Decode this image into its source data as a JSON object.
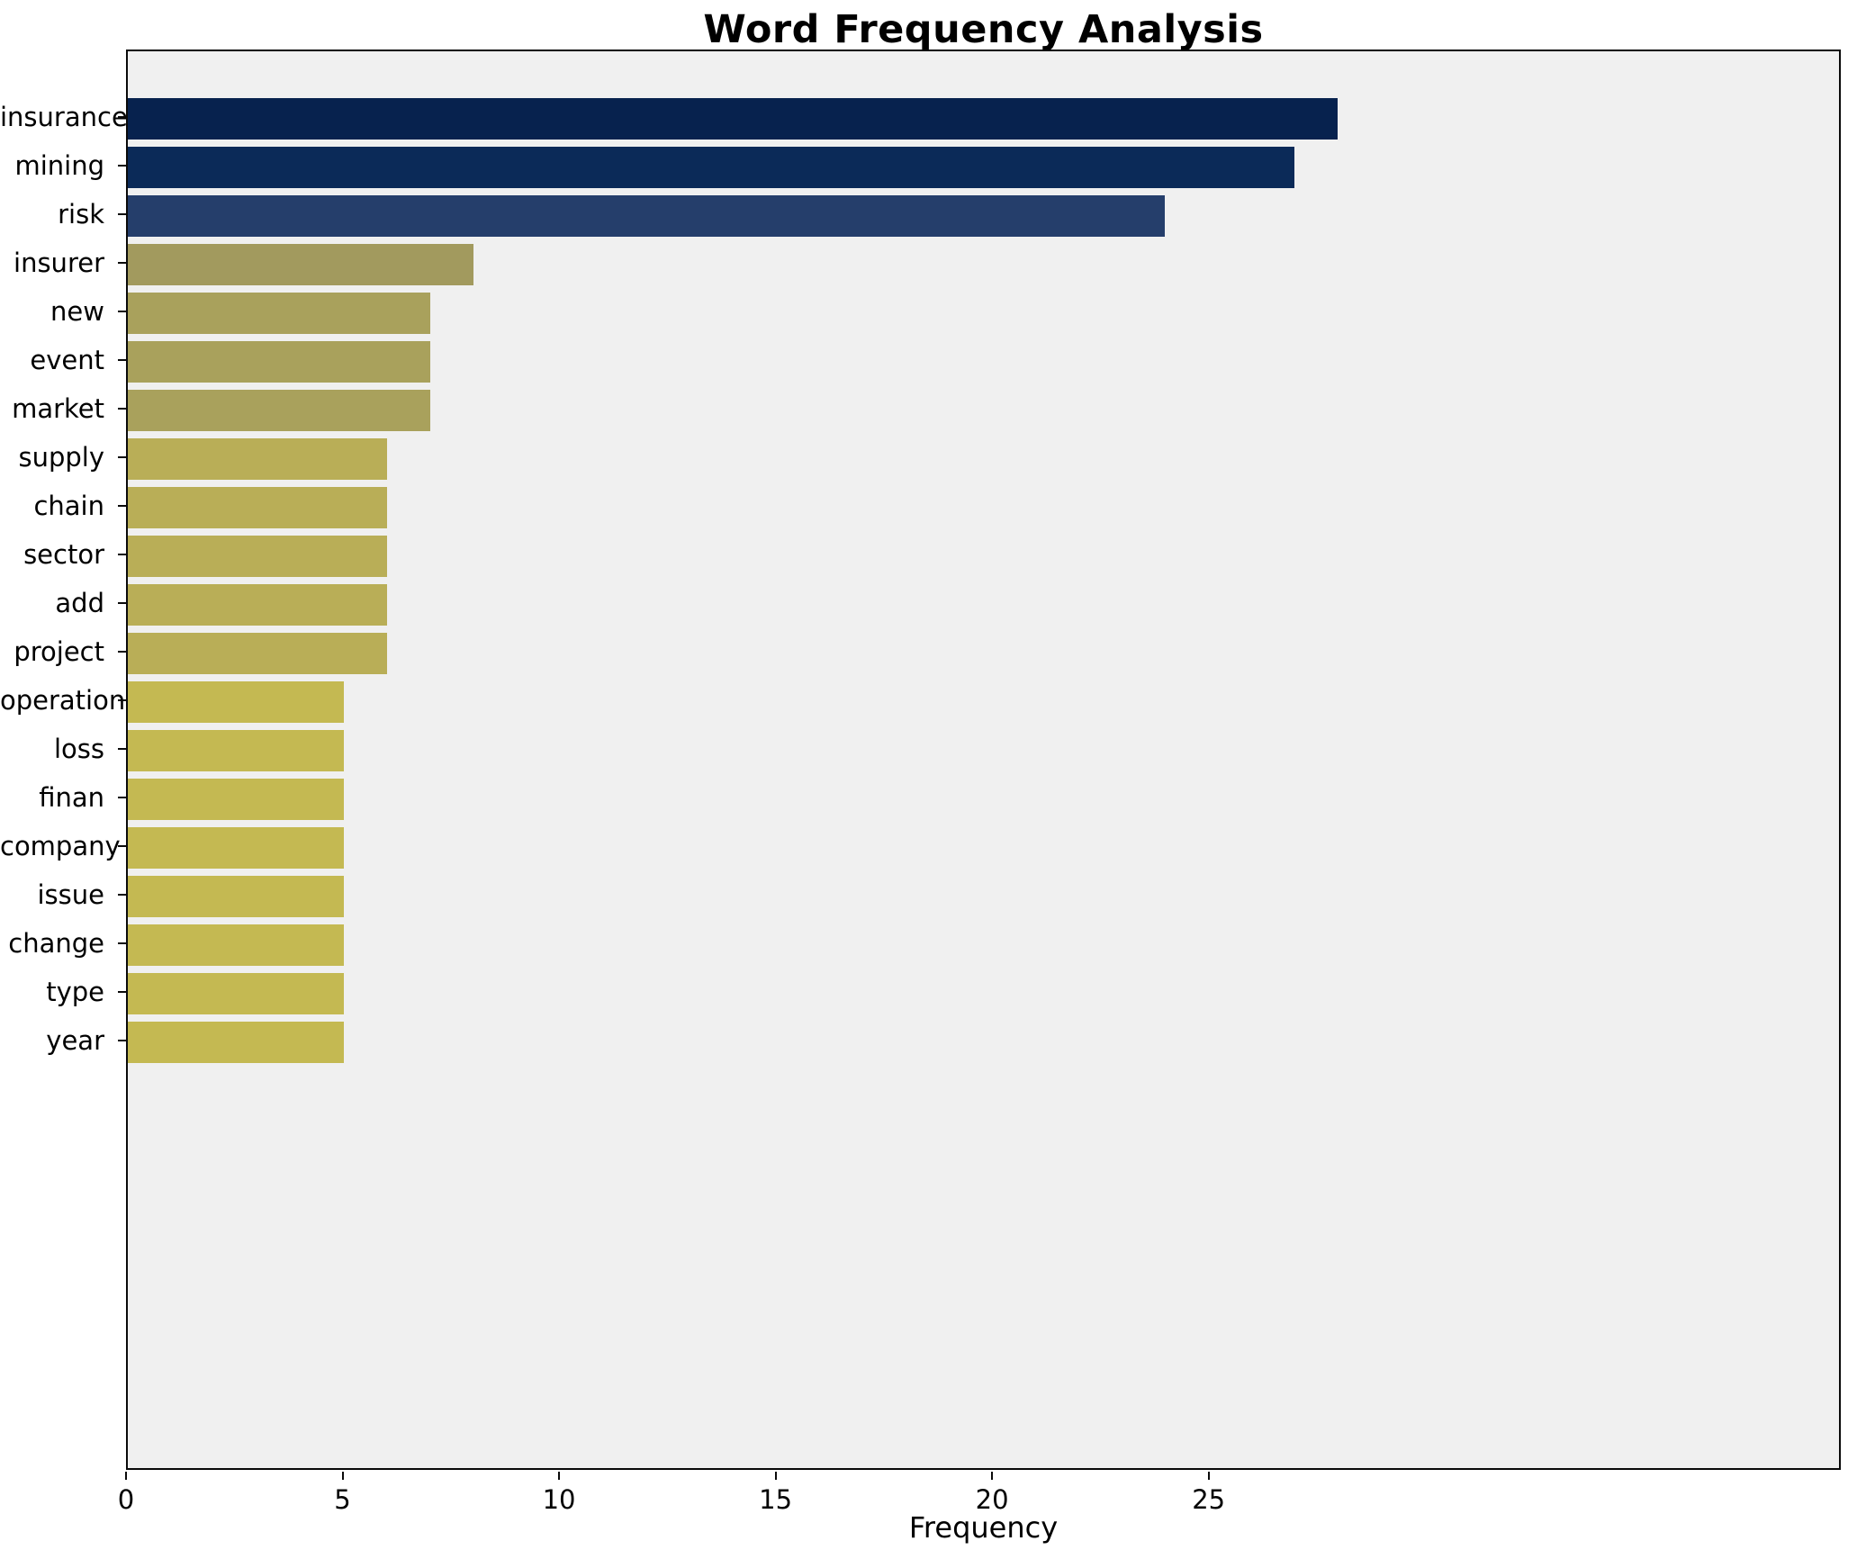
{
  "title": "Word Frequency Analysis",
  "chart_data": {
    "type": "bar",
    "orientation": "horizontal",
    "title": "Word Frequency Analysis",
    "xlabel": "Frequency",
    "ylabel": "",
    "grid": false,
    "legend": null,
    "plot_background": "#f0f0f0",
    "xlim": [
      0,
      39.6
    ],
    "xticks": [
      0,
      5,
      10,
      15,
      20,
      25
    ],
    "categories": [
      "insurance",
      "mining",
      "risk",
      "insurer",
      "new",
      "event",
      "market",
      "supply",
      "chain",
      "sector",
      "add",
      "project",
      "operation",
      "loss",
      "finan",
      "company",
      "issue",
      "change",
      "type",
      "year"
    ],
    "values": [
      28,
      27,
      24,
      8,
      7,
      7,
      7,
      6,
      6,
      6,
      6,
      6,
      5,
      5,
      5,
      5,
      5,
      5,
      5,
      5
    ],
    "bar_colors": [
      "#07224e",
      "#0b2a58",
      "#253e6b",
      "#a29a5e",
      "#a9a15c",
      "#a9a15c",
      "#a9a15c",
      "#b9ae57",
      "#b9ae57",
      "#b9ae57",
      "#b9ae57",
      "#b9ae57",
      "#c4b952",
      "#c4b952",
      "#c4b952",
      "#c4b952",
      "#c4b952",
      "#c4b952",
      "#c4b952",
      "#c4b952"
    ]
  }
}
